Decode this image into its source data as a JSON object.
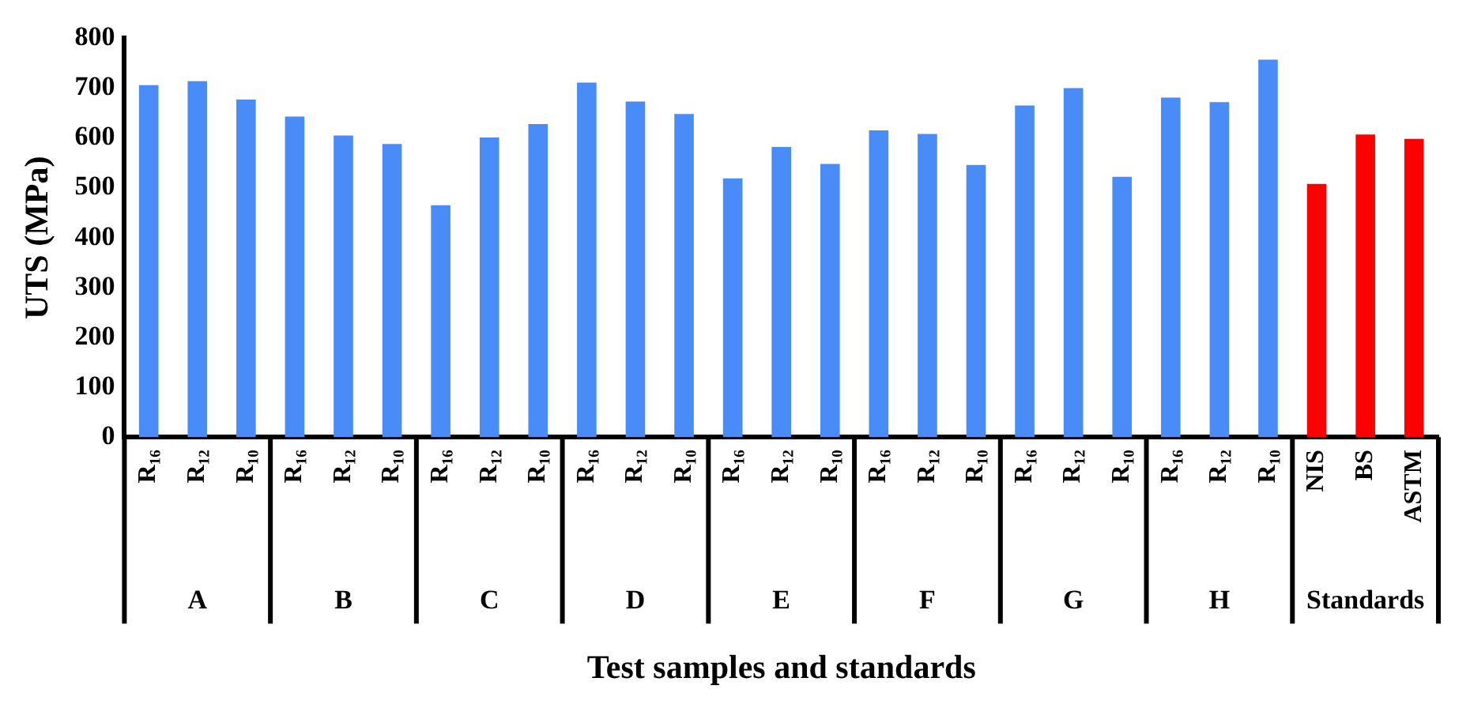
{
  "chart_data": {
    "type": "bar",
    "xlabel": "Test samples and standards",
    "ylabel": "UTS (MPa)",
    "categories": [
      "R₁₆",
      "R₁₂",
      "R₁₀",
      "R₁₆",
      "R₁₂",
      "R₁₀",
      "R₁₆",
      "R₁₂",
      "R₁₀",
      "R₁₆",
      "R₁₂",
      "R₁₀",
      "R₁₆",
      "R₁₂",
      "R₁₀",
      "R₁₆",
      "R₁₂",
      "R₁₀",
      "R₁₆",
      "R₁₂",
      "R₁₀",
      "R₁₆",
      "R₁₂",
      "R₁₀",
      "NIS",
      "BS",
      "ASTM"
    ],
    "values": [
      706,
      714,
      677,
      643,
      605,
      588,
      465,
      601,
      628,
      711,
      673,
      648,
      519,
      582,
      548,
      615,
      608,
      546,
      665,
      700,
      522,
      681,
      672,
      757,
      508,
      607,
      598
    ],
    "colors": [
      "#4a8cf7",
      "#4a8cf7",
      "#4a8cf7",
      "#4a8cf7",
      "#4a8cf7",
      "#4a8cf7",
      "#4a8cf7",
      "#4a8cf7",
      "#4a8cf7",
      "#4a8cf7",
      "#4a8cf7",
      "#4a8cf7",
      "#4a8cf7",
      "#4a8cf7",
      "#4a8cf7",
      "#4a8cf7",
      "#4a8cf7",
      "#4a8cf7",
      "#4a8cf7",
      "#4a8cf7",
      "#4a8cf7",
      "#4a8cf7",
      "#4a8cf7",
      "#4a8cf7",
      "#ff0000",
      "#ff0000",
      "#ff0000"
    ],
    "annotations": [
      "A",
      "B",
      "C",
      "D",
      "E",
      "F",
      "G",
      "H",
      "Standards"
    ],
    "ylim": [
      0,
      800
    ],
    "yticks": [
      0,
      100,
      200,
      300,
      400,
      500,
      600,
      700,
      800
    ],
    "grid": false,
    "legend": false
  }
}
